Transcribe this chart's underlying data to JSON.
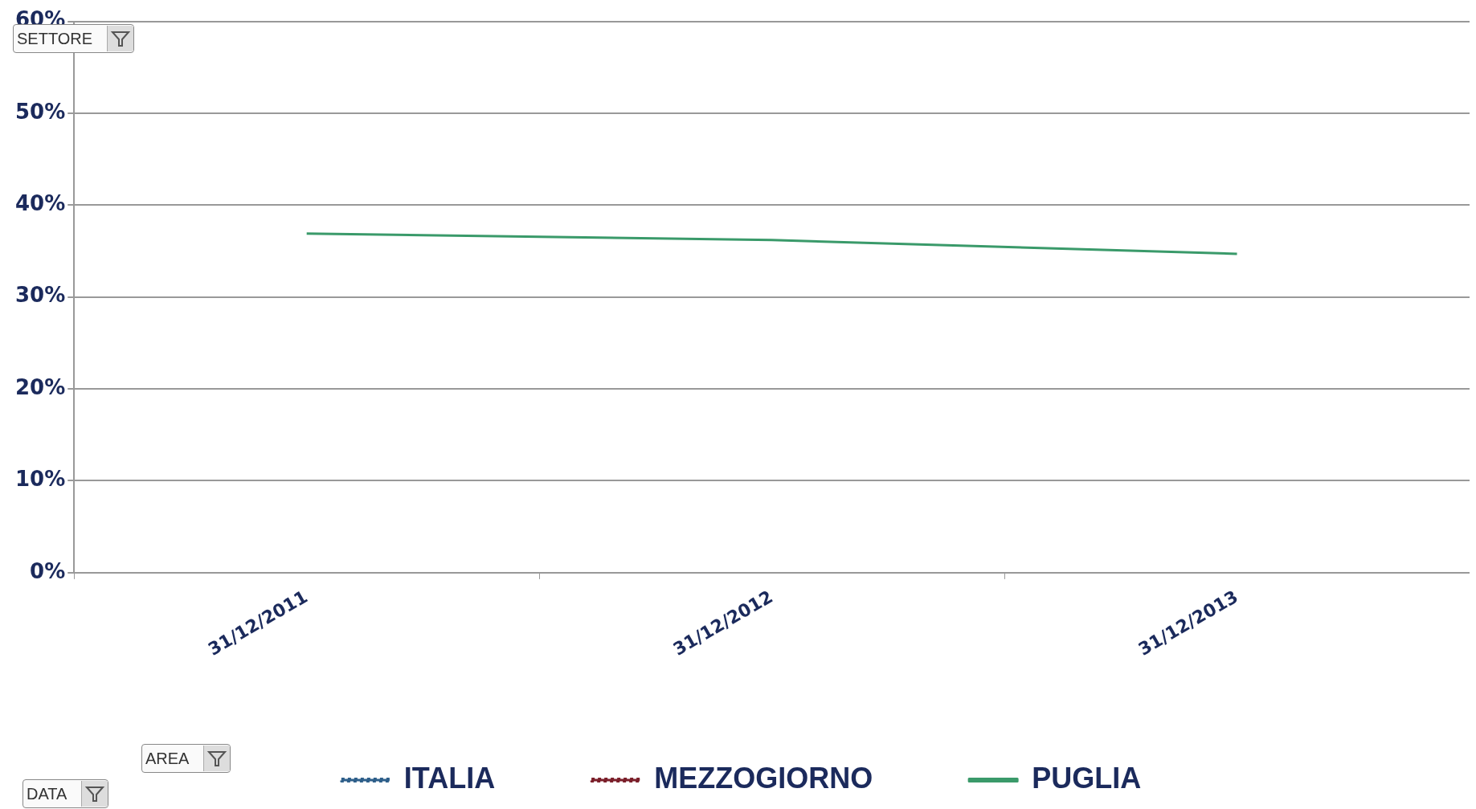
{
  "chart_data": {
    "type": "line",
    "categories": [
      "31/12/2011",
      "31/12/2012",
      "31/12/2013"
    ],
    "series": [
      {
        "name": "ITALIA",
        "color": "#2e5f8a",
        "line_style": "dotted",
        "values": [
          null,
          null,
          null
        ]
      },
      {
        "name": "MEZZOGIORNO",
        "color": "#7b1f2a",
        "line_style": "dotted",
        "values": [
          null,
          null,
          null
        ]
      },
      {
        "name": "PUGLIA",
        "color": "#3a9a6a",
        "line_style": "solid",
        "values": [
          36.9,
          36.2,
          34.7
        ]
      }
    ],
    "ylim": [
      0,
      60
    ],
    "yticks": [
      {
        "value": 0,
        "label": "0%"
      },
      {
        "value": 10,
        "label": "10%"
      },
      {
        "value": 20,
        "label": "20%"
      },
      {
        "value": 30,
        "label": "30%"
      },
      {
        "value": 40,
        "label": "40%"
      },
      {
        "value": 50,
        "label": "50%"
      },
      {
        "value": 60,
        "label": "60%"
      }
    ],
    "grid": "y",
    "legend": "bottom",
    "marker": "none",
    "annotations": [
      "SETTORE",
      "AREA",
      "DATA"
    ]
  }
}
